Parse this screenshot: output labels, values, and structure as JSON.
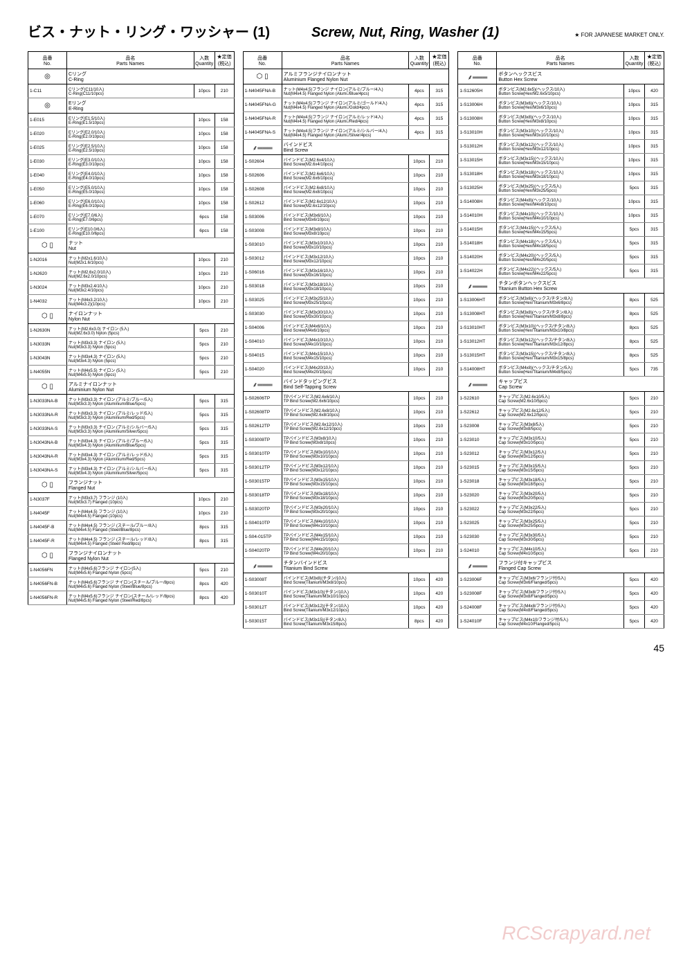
{
  "titles": {
    "jp": "ビス・ナット・リング・ワッシャー  (1)",
    "en": "Screw, Nut, Ring, Washer (1)",
    "note": "★ FOR JAPANESE MARKET ONLY."
  },
  "headers": {
    "no_jp": "品番",
    "no_en": "No.",
    "name_jp": "品名",
    "name_en": "Parts Names",
    "qty_jp": "入数",
    "qty_en": "Quantity",
    "price_jp": "★定価",
    "price_en": "(税込)"
  },
  "page": "45",
  "watermark": "RCScrapyard.net",
  "col1": [
    {
      "sect": true,
      "icon": "◎",
      "jp": "Cリング",
      "en": "C-Ring"
    },
    {
      "no": "1-C11",
      "jp": "Cリング(C11/10入)",
      "en": "C-Ring(C11/10pcs)",
      "qty": "10pcs",
      "price": "210"
    },
    {
      "sect": true,
      "icon": "◎",
      "jp": "Eリング",
      "en": "E-Ring"
    },
    {
      "no": "1-E015",
      "jp": "Eリング(E1.5/10入)",
      "en": "E-Ring(E1.5/10pcs)",
      "qty": "10pcs",
      "price": "158"
    },
    {
      "no": "1-E020",
      "jp": "Eリング(E2.0/10入)",
      "en": "E-Ring(E2.0/10pcs)",
      "qty": "10pcs",
      "price": "158"
    },
    {
      "no": "1-E025",
      "jp": "Eリング(E2.5/10入)",
      "en": "E-Ring(E2.5/10pcs)",
      "qty": "10pcs",
      "price": "158"
    },
    {
      "no": "1-E030",
      "jp": "Eリング(E3.0/10入)",
      "en": "E-Ring(E3.0/10pcs)",
      "qty": "10pcs",
      "price": "158"
    },
    {
      "no": "1-E040",
      "jp": "Eリング(E4.0/10入)",
      "en": "E-Ring(E4.0/10pcs)",
      "qty": "10pcs",
      "price": "158"
    },
    {
      "no": "1-E050",
      "jp": "Eリング(E5.0/10入)",
      "en": "E-Ring(E5.0/10pcs)",
      "qty": "10pcs",
      "price": "158"
    },
    {
      "no": "1-E060",
      "jp": "Eリング(E6.0/10入)",
      "en": "E-Ring(E6.0/10pcs)",
      "qty": "10pcs",
      "price": "158"
    },
    {
      "no": "1-E070",
      "jp": "Eリング(E7.0/6入)",
      "en": "E-Ring(E7.0/6pcs)",
      "qty": "6pcs",
      "price": "158"
    },
    {
      "no": "1-E100",
      "jp": "Eリング(E10.0/6入)",
      "en": "E-Ring(E10.0/6pcs)",
      "qty": "6pcs",
      "price": "158"
    },
    {
      "sect": true,
      "icon": "⬡ ▯",
      "jp": "ナット",
      "en": "Nut"
    },
    {
      "no": "1-N2016",
      "jp": "ナット(M2x1.6/10入)",
      "en": "Nut(M2x1.6/10pcs)",
      "qty": "10pcs",
      "price": "210"
    },
    {
      "no": "1-N2620",
      "jp": "ナット(M2.6x2.0/10入)",
      "en": "Nut(M2.6x2.0/10pcs)",
      "qty": "10pcs",
      "price": "210"
    },
    {
      "no": "1-N3024",
      "jp": "ナット(M3x2.4/10入)",
      "en": "Nut(M3x2.4/10pcs)",
      "qty": "10pcs",
      "price": "210"
    },
    {
      "no": "1-N4032",
      "jp": "ナット(M4x3.2/10入)",
      "en": "Nut(M4x3.2)(10pcs)",
      "qty": "10pcs",
      "price": "210"
    },
    {
      "sect": true,
      "icon": "⬡ ▯",
      "jp": "ナイロンナット",
      "en": "Nylon Nut"
    },
    {
      "no": "1-N2630N",
      "jp": "ナット(M2.6x3.0) ナイロン (5入)",
      "en": "Nut(M2.6x3.0) Nylon (5pcs)",
      "qty": "5pcs",
      "price": "210"
    },
    {
      "no": "1-N3033N",
      "jp": "ナット(M3x3.3) ナイロン (5入)",
      "en": "Nut(M3x3.3) Nylon (5pcs)",
      "qty": "5pcs",
      "price": "210"
    },
    {
      "no": "1-N3043N",
      "jp": "ナット(M3x4.3) ナイロン (5入)",
      "en": "Nut(M3x4.3) Nylon (5pcs)",
      "qty": "5pcs",
      "price": "210"
    },
    {
      "no": "1-N4055N",
      "jp": "ナット(M4x5.5) ナイロン (5入)",
      "en": "Nut(M4x5.5) Nylon (5pcs)",
      "qty": "5pcs",
      "price": "210"
    },
    {
      "sect": true,
      "icon": "⬡ ▯",
      "jp": "アルミナイロンナット",
      "en": "Aluminium Nylon Nut"
    },
    {
      "no": "1-N3033NA-B",
      "jp": "ナット(M3x3.3) ナイロン (アルミ/ブルー/5入)",
      "en": "Nut(M3x3.3) Nylon (Aluminium/Blue/5pcs)",
      "qty": "5pcs",
      "price": "315"
    },
    {
      "no": "1-N3033NA-R",
      "jp": "ナット(M3x3.3) ナイロン (アルミ/レッド/5入)",
      "en": "Nut(M3x3.3) Nylon (Aluminium/Red/5pcs)",
      "qty": "5pcs",
      "price": "315"
    },
    {
      "no": "1-N3033NA-S",
      "jp": "ナット(M3x3.3) ナイロン (アルミ/シルバー/5入)",
      "en": "Nut(M3x3.3) Nylon (Aluminium/Silver/5pcs)",
      "qty": "5pcs",
      "price": "315"
    },
    {
      "no": "1-N3043NA-B",
      "jp": "ナット(M3x4.3) ナイロン (アルミ/ブルー/5入)",
      "en": "Nut(M3x4.3) Nylon (Aluminium/Blue/5pcs)",
      "qty": "5pcs",
      "price": "315"
    },
    {
      "no": "1-N3043NA-R",
      "jp": "ナット(M3x4.3) ナイロン (アルミ/レッド/5入)",
      "en": "Nut(M3x4.3) Nylon (Aluminium/Red/5pcs)",
      "qty": "5pcs",
      "price": "315"
    },
    {
      "no": "1-N3043NA-S",
      "jp": "ナット(M3x4.3) ナイロン (アルミ/シルバー/5入)",
      "en": "Nut(M3x4.3) Nylon (Aluminium/Silver/5pcs)",
      "qty": "5pcs",
      "price": "315"
    },
    {
      "sect": true,
      "icon": "⬡ ▯",
      "jp": "フランジナット",
      "en": "Flanged Nut"
    },
    {
      "no": "1-N3037F",
      "jp": "ナット(M3x3.7) フランジ (10入)",
      "en": "Nut(M3x3.7) Flanged (10pcs)",
      "qty": "10pcs",
      "price": "210"
    },
    {
      "no": "1-N4045F",
      "jp": "ナット(M4x4.5) フランジ (10入)",
      "en": "Nut(M4x4.5) Flanged (10pcs)",
      "qty": "10pcs",
      "price": "210"
    },
    {
      "no": "1-N4045F-B",
      "jp": "ナット(M4x4.5) フランジ (スチール/ブルー/8入)",
      "en": "Nut(M4x4.5) Flanged (Steel/Blue/8pcs)",
      "qty": "8pcs",
      "price": "315"
    },
    {
      "no": "1-N4045F-R",
      "jp": "ナット(M4x4.5) フランジ (スチール/レッド/8入)",
      "en": "Nut(M4x4.5) Flanged (Steel/ Red/8pcs)",
      "qty": "8pcs",
      "price": "315"
    },
    {
      "sect": true,
      "icon": "⬡ ▯",
      "jp": "フランジナイロンナット",
      "en": "Flanged Nylon Nut"
    },
    {
      "no": "1-N4056FN",
      "jp": "ナット(M4x5.6)フランジ ナイロン(5入)",
      "en": "Nut(M4x5.6) Flanged Nylon (5pcs)",
      "qty": "5pcs",
      "price": "210"
    },
    {
      "no": "1-N4056FN-B",
      "jp": "ナット(M4x5.6)フランジ ナイロン(スチール/ブルー/8pcs)",
      "en": "Nut(M4x5.6) Flanged Nylon (Steel/Blue/8pcs)",
      "qty": "8pcs",
      "price": "420"
    },
    {
      "no": "1-N4056FN-R",
      "jp": "ナット(M4x5.6)フランジ ナイロン(スチール/レッド/8pcs)",
      "en": "Nut(M4x5.6) Flanged Nylon (Steel/Red/8pcs)",
      "qty": "8pcs",
      "price": "420"
    }
  ],
  "col2": [
    {
      "sect": true,
      "icon": "⬡ ▯",
      "jp": "アルミフランジナイロンナット",
      "en": "Aluminium Flanged Nylon Nut"
    },
    {
      "no": "1-N4045FNA-B",
      "jp": "ナット(M4x4.5)フランジ ナイロン(アルミ/ブルー/4入)",
      "en": "Nut(M4x4.5) Flanged Nylon (Alumi./Blue/4pcs)",
      "qty": "4pcs",
      "price": "315"
    },
    {
      "no": "1-N4045FNA-G",
      "jp": "ナット(M4x4.5)フランジ ナイロン(アルミ/ゴールド/4入)",
      "en": "Nut(M4x4.5) Flanged Nylon (Alumi./Gold/4pcs)",
      "qty": "4pcs",
      "price": "315"
    },
    {
      "no": "1-N4045FNA-R",
      "jp": "ナット(M4x4.5)フランジ ナイロン(アルミ/レッド/4入)",
      "en": "Nut(M4x4.5) Flanged Nylon (Alumi./Red/4pcs)",
      "qty": "4pcs",
      "price": "315"
    },
    {
      "no": "1-N4045FNA-S",
      "jp": "ナット(M4x4.5)フランジ ナイロン(アルミ/シルバー/4入)",
      "en": "Nut(M4x4.5) Flanged Nylon (Alumi./Silver/4pcs)",
      "qty": "4pcs",
      "price": "315"
    },
    {
      "sect": true,
      "icon": "⸙═══",
      "jp": "バインドビス",
      "en": "Bind Screw"
    },
    {
      "no": "1-S02604",
      "jp": "バインドビス(M2.6x4/10入)",
      "en": "Bind Screw(M2.6x4/10pcs)",
      "qty": "10pcs",
      "price": "210"
    },
    {
      "no": "1-S02606",
      "jp": "バインドビス(M2.6x6/10入)",
      "en": "Bind Screw(M2.6x6/10pcs)",
      "qty": "10pcs",
      "price": "210"
    },
    {
      "no": "1-S02608",
      "jp": "バインドビス(M2.6x8/10入)",
      "en": "Bind Screw(M2.6x8/10pcs)",
      "qty": "10pcs",
      "price": "210"
    },
    {
      "no": "1-S02612",
      "jp": "バインドビス(M2.6x12/10入)",
      "en": "Bind Screw(M2.6x12/10pcs)",
      "qty": "10pcs",
      "price": "210"
    },
    {
      "no": "1-S03006",
      "jp": "バインドビス(M3x6/10入)",
      "en": "Bind Screw(M3x6/10pcs)",
      "qty": "10pcs",
      "price": "210"
    },
    {
      "no": "1-S03008",
      "jp": "バインドビス(M3x8/10入)",
      "en": "Bind Screw(M3x8/10pcs)",
      "qty": "10pcs",
      "price": "210"
    },
    {
      "no": "1-S03010",
      "jp": "バインドビス(M3x10/10入)",
      "en": "Bind Screw(M3x10/10pcs)",
      "qty": "10pcs",
      "price": "210"
    },
    {
      "no": "1-S03012",
      "jp": "バインドビス(M3x12/10入)",
      "en": "Bind Screw(M3x12/10pcs)",
      "qty": "10pcs",
      "price": "210"
    },
    {
      "no": "1-S06016",
      "jp": "バインドビス(M3x16/10入)",
      "en": "Bind Screw(M3x16/10pcs)",
      "qty": "10pcs",
      "price": "210"
    },
    {
      "no": "1-S03018",
      "jp": "バインドビス(M3x18/10入)",
      "en": "Bind Screw(M3x18/10pcs)",
      "qty": "10pcs",
      "price": "210"
    },
    {
      "no": "1-S03025",
      "jp": "バインドビス(M3x25/10入)",
      "en": "Bind Screw(M3x25/10pcs)",
      "qty": "10pcs",
      "price": "210"
    },
    {
      "no": "1-S03030",
      "jp": "バインドビス(M3x30/10入)",
      "en": "Bind Screw(M3x30/10pcs)",
      "qty": "10pcs",
      "price": "210"
    },
    {
      "no": "1-S04006",
      "jp": "バインドビス(M4x6/10入)",
      "en": "Bind Screw(M4x6/10pcs)",
      "qty": "10pcs",
      "price": "210"
    },
    {
      "no": "1-S04010",
      "jp": "バインドビス(M4x10/10入)",
      "en": "Bind Screw(M4x10/10pcs)",
      "qty": "10pcs",
      "price": "210"
    },
    {
      "no": "1-S04015",
      "jp": "バインドビス(M4x15/10入)",
      "en": "Bind Screw(M4x15/10pcs)",
      "qty": "10pcs",
      "price": "210"
    },
    {
      "no": "1-S04020",
      "jp": "バインドビス(M4x20/10入)",
      "en": "Bind Screw(M4x20/10pcs)",
      "qty": "10pcs",
      "price": "210"
    },
    {
      "sect": true,
      "icon": "⸙═══",
      "jp": "バインドタッピングビス",
      "en": "Bind Self-Tapping Screw"
    },
    {
      "no": "1-S02606TP",
      "jp": "TPバインドビス(M2.6x6/10入)",
      "en": "TP Bind Screw(M2.6x6/10pcs)",
      "qty": "10pcs",
      "price": "210"
    },
    {
      "no": "1-S02608TP",
      "jp": "TPバインドビス(M2.6x8/10入)",
      "en": "TP Bind Screw(M2.6x8/10pcs)",
      "qty": "10pcs",
      "price": "210"
    },
    {
      "no": "1-S02612TP",
      "jp": "TPバインドビス(M2.6x12/10入)",
      "en": "TP Bind Screw(M2.6x12/10pcs)",
      "qty": "10pcs",
      "price": "210"
    },
    {
      "no": "1-S03008TP",
      "jp": "TPバインドビス(M3x8/10入)",
      "en": "TP Bind Screw(M3x8/10pcs)",
      "qty": "10pcs",
      "price": "210"
    },
    {
      "no": "1-S03010TP",
      "jp": "TPバインドビス(M3x10/10入)",
      "en": "TP Bind Screw(M3x10/10pcs)",
      "qty": "10pcs",
      "price": "210"
    },
    {
      "no": "1-S03012TP",
      "jp": "TPバインドビス(M3x12/10入)",
      "en": "TP Bind Screw(M3x12/10pcs)",
      "qty": "10pcs",
      "price": "210"
    },
    {
      "no": "1-S03015TP",
      "jp": "TPバインドビス(M3x15/10入)",
      "en": "TP Bind Screw(M3x15/10pcs)",
      "qty": "10pcs",
      "price": "210"
    },
    {
      "no": "1-S03018TP",
      "jp": "TPバインドビス(M3x18/10入)",
      "en": "TP Bind Screw(M3x18/10pcs)",
      "qty": "10pcs",
      "price": "210"
    },
    {
      "no": "1-S03020TP",
      "jp": "TPバインドビス(M3x20/10入)",
      "en": "TP Bind Screw(M3x20/10pcs)",
      "qty": "10pcs",
      "price": "210"
    },
    {
      "no": "1-S04010TP",
      "jp": "TPバインドビス(M4x10/10入)",
      "en": "TP Bind Screw(M4x10/10pcs)",
      "qty": "10pcs",
      "price": "210"
    },
    {
      "no": "1-S04-015TP",
      "jp": "TPバインドビス(M4x15/10入)",
      "en": "TP Bind Screw(M4x15/10pcs)",
      "qty": "10pcs",
      "price": "210"
    },
    {
      "no": "1-S04020TP",
      "jp": "TPバインドビス(M4x20/10入)",
      "en": "TP Bind Screw(M4x20/10pcs)",
      "qty": "10pcs",
      "price": "210"
    },
    {
      "sect": true,
      "icon": "⸙═══",
      "jp": "チタンバインドビス",
      "en": "Titanium Bind Screw"
    },
    {
      "no": "1-S03008T",
      "jp": "バインドビス(M3x8)(チタン/10入)",
      "en": "Bind Screw(Titanium/M3x8/10pcs)",
      "qty": "10pcs",
      "price": "420"
    },
    {
      "no": "1-S03010T",
      "jp": "バインドビス(M3x10)(チタン/10入)",
      "en": "Bind Screw(Titanium/M3x10/10pcs)",
      "qty": "10pcs",
      "price": "420"
    },
    {
      "no": "1-S03012T",
      "jp": "バインドビス(M3x12)(チタン/10入)",
      "en": "Bind Screw(Titanium/M3x12/10pcs)",
      "qty": "10pcs",
      "price": "420"
    },
    {
      "no": "1-S03015T",
      "jp": "バインドビス(M3x15)(チタン/8入)",
      "en": "Bind Screw(Titanium/M3x15/8pcs)",
      "qty": "8pcs",
      "price": "420"
    }
  ],
  "col3": [
    {
      "sect": true,
      "icon": "⸙═══",
      "jp": "ボタンヘックスビス",
      "en": "Button Hex Screw"
    },
    {
      "no": "1-S12605H",
      "jp": "ボタンビス(M2.6x5)(ヘックス/10入)",
      "en": "Button Screw(Hex/M2.6x5/10pcs)",
      "qty": "10pcs",
      "price": "420"
    },
    {
      "no": "1-S13006H",
      "jp": "ボタンビス(M3x6)(ヘックス/10入)",
      "en": "Button Screw(Hex/M3x6/10pcs)",
      "qty": "10pcs",
      "price": "315"
    },
    {
      "no": "1-S13008H",
      "jp": "ボタンビス(M3x8)(ヘックス/10入)",
      "en": "Button Screw(Hex/M3x8/10pcs)",
      "qty": "10pcs",
      "price": "315"
    },
    {
      "no": "1-S13010H",
      "jp": "ボタンビス(M3x10)(ヘックス/10入)",
      "en": "Button Screw(Hex/M3x10/10pcs)",
      "qty": "10pcs",
      "price": "315"
    },
    {
      "no": "1-S13012H",
      "jp": "ボタンビス(M3x12)(ヘックス/10入)",
      "en": "Button Screw(Hex/M3x12/10pcs)",
      "qty": "10pcs",
      "price": "315"
    },
    {
      "no": "1-S13015H",
      "jp": "ボタンビス(M3x15)(ヘックス/10入)",
      "en": "Button Screw(Hex/M3x15/10pcs)",
      "qty": "10pcs",
      "price": "315"
    },
    {
      "no": "1-S13018H",
      "jp": "ボタンビス(M3x18)(ヘックス/10入)",
      "en": "Button Screw(Hex/M3x18/10pcs)",
      "qty": "10pcs",
      "price": "315"
    },
    {
      "no": "1-S13025H",
      "jp": "ボタンビス(M3x25)(ヘックス/5入)",
      "en": "Button Screw(Hex/M3x25/5pcs)",
      "qty": "5pcs",
      "price": "315"
    },
    {
      "no": "1-S14008H",
      "jp": "ボタンビス(M4x8)(ヘックス/10入)",
      "en": "Button Screw(Hex/M4x8/10pcs)",
      "qty": "10pcs",
      "price": "315"
    },
    {
      "no": "1-S14010H",
      "jp": "ボタンビス(M4x10)(ヘックス/10入)",
      "en": "Button Screw(Hex/M4x10/10pcs)",
      "qty": "10pcs",
      "price": "315"
    },
    {
      "no": "1-S14015H",
      "jp": "ボタンビス(M4x15)(ヘックス/5入)",
      "en": "Button Screw(Hex/M4x15/5pcs)",
      "qty": "5pcs",
      "price": "315"
    },
    {
      "no": "1-S14018H",
      "jp": "ボタンビス(M4x18)(ヘックス/5入)",
      "en": "Button Screw(Hex/M4x18/5pcs)",
      "qty": "5pcs",
      "price": "315"
    },
    {
      "no": "1-S14020H",
      "jp": "ボタンビス(M4x20)(ヘックス/5入)",
      "en": "Button Screw(Hex/M4x20/5pcs)",
      "qty": "5pcs",
      "price": "315"
    },
    {
      "no": "1-S14022H",
      "jp": "ボタンビス(M4x22)(ヘックス/5入)",
      "en": "Button Screw(Hex/M4x22/5pcs)",
      "qty": "5pcs",
      "price": "315"
    },
    {
      "sect": true,
      "icon": "⸙═══",
      "jp": "チタンボタンヘックスビス",
      "en": "Titanium Button Hex Screw"
    },
    {
      "no": "1-S13006HT",
      "jp": "ボタンビス(M3x6)(ヘックス/チタン/8入)",
      "en": "Button Screw(Hex/Titanium/M3x6/8pcs)",
      "qty": "8pcs",
      "price": "525"
    },
    {
      "no": "1-S13008HT",
      "jp": "ボタンビス(M3x8)(ヘックス/チタン/8入)",
      "en": "Button Screw(Hex/Titanium/M3x8/8pcs)",
      "qty": "8pcs",
      "price": "525"
    },
    {
      "no": "1-S13010HT",
      "jp": "ボタンビス(M3x10)(ヘックス/チタン/8入)",
      "en": "Button Screw(Hex/Titanium/M3x10/8pcs)",
      "qty": "8pcs",
      "price": "525"
    },
    {
      "no": "1-S13012HT",
      "jp": "ボタンビス(M3x12)(ヘックス/チタン/8入)",
      "en": "Button Screw(Hex/Titanium/M3x12/8pcs)",
      "qty": "8pcs",
      "price": "525"
    },
    {
      "no": "1-S13015HT",
      "jp": "ボタンビス(M3x15)(ヘックス/チタン/8入)",
      "en": "Button Screw(Hex/Titanium/M3x15/8pcs)",
      "qty": "8pcs",
      "price": "525"
    },
    {
      "no": "1-S14008HT",
      "jp": "ボタンビス(M4x8)(ヘックス/チタン/5入)",
      "en": "Button Screw(Hex/Titanium/M4x8/5pcs)",
      "qty": "5pcs",
      "price": "735"
    },
    {
      "sect": true,
      "icon": "⸙═══",
      "jp": "キャップビス",
      "en": "Cap Screw"
    },
    {
      "no": "1-S22610",
      "jp": "キャップビス(M2.6x10/5入)",
      "en": "Cap Screw(M2.6x10/5pcs)",
      "qty": "5pcs",
      "price": "210"
    },
    {
      "no": "1-S22612",
      "jp": "キャップビス(M2.6x12/5入)",
      "en": "Cap Screw(M2.6x12/5pcs)",
      "qty": "5pcs",
      "price": "210"
    },
    {
      "no": "1-S23008",
      "jp": "キャップビス(M3x8/5入)",
      "en": "Cap Screw(M3x8/5pcs)",
      "qty": "5pcs",
      "price": "210"
    },
    {
      "no": "1-S23010",
      "jp": "キャップビス(M3x10/5入)",
      "en": "Cap Screw(M3x10/5pcs)",
      "qty": "5pcs",
      "price": "210"
    },
    {
      "no": "1-S23012",
      "jp": "キャップビス(M3x12/5入)",
      "en": "Cap Screw(M3x12/5pcs)",
      "qty": "5pcs",
      "price": "210"
    },
    {
      "no": "1-S23015",
      "jp": "キャップビス(M3x15/5入)",
      "en": "Cap Screw(M3x15/5pcs)",
      "qty": "5pcs",
      "price": "210"
    },
    {
      "no": "1-S23018",
      "jp": "キャップビス(M3x18/5入)",
      "en": "Cap Screw(M3x18/5pcs)",
      "qty": "5pcs",
      "price": "210"
    },
    {
      "no": "1-S23020",
      "jp": "キャップビス(M3x20/5入)",
      "en": "Cap Screw(M3x20/5pcs)",
      "qty": "5pcs",
      "price": "210"
    },
    {
      "no": "1-S23022",
      "jp": "キャップビス(M3x22/5入)",
      "en": "Cap Screw(M3x22/5pcs)",
      "qty": "5pcs",
      "price": "210"
    },
    {
      "no": "1-S23025",
      "jp": "キャップビス(M3x25/5入)",
      "en": "Cap Screw(M3x25/5pcs)",
      "qty": "5pcs",
      "price": "210"
    },
    {
      "no": "1-S23030",
      "jp": "キャップビス(M3x30/5入)",
      "en": "Cap Screw(M3x30/5pcs)",
      "qty": "5pcs",
      "price": "210"
    },
    {
      "no": "1-S24010",
      "jp": "キャップビス(M4x10/5入)",
      "en": "Cap Screw(M4x10/5pcs)",
      "qty": "5pcs",
      "price": "210"
    },
    {
      "sect": true,
      "icon": "⸙═══",
      "jp": "フランジ付キャップビス",
      "en": "Flanged Cap Screw"
    },
    {
      "no": "1-S23006F",
      "jp": "キャップビス(M3x6/フランジ付/5入)",
      "en": "Cap Screw(M3x6/Flanged/5pcs)",
      "qty": "5pcs",
      "price": "420"
    },
    {
      "no": "1-S23008F",
      "jp": "キャップビス(M3x8/フランジ付/5入)",
      "en": "Cap Screw(M3x8/Flanged/5pcs)",
      "qty": "5pcs",
      "price": "420"
    },
    {
      "no": "1-S24008F",
      "jp": "キャップビス(M4x8/フランジ付/5入)",
      "en": "Cap Screw(M4x8/Flanged/5pcs)",
      "qty": "5pcs",
      "price": "420"
    },
    {
      "no": "1-S24010F",
      "jp": "キャップビス(M4x10/フランジ付/5入)",
      "en": "Cap Screw(M4x10/Flanged/5pcs)",
      "qty": "5pcs",
      "price": "420"
    }
  ]
}
